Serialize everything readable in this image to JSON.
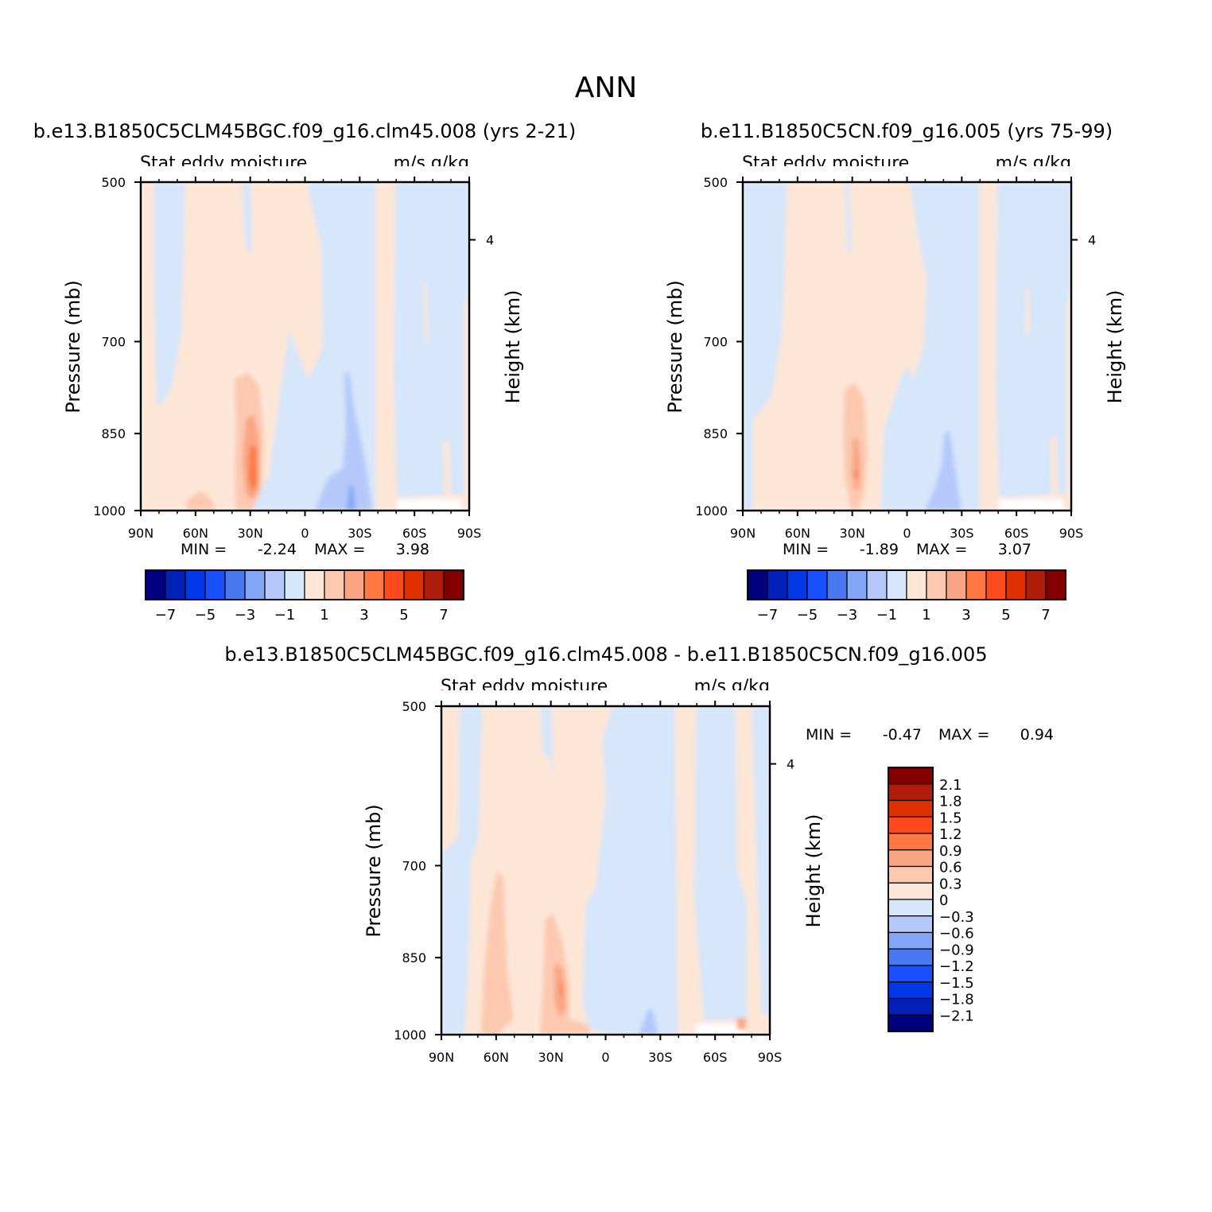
{
  "figure_title": "ANN",
  "chart_data": [
    {
      "type": "heatmap",
      "title": "b.e13.B1850C5CLM45BGC.f09_g16.clm45.008 (yrs 2-21)",
      "variable": "Stat eddy moisture",
      "units": "m/s g/kg",
      "xlabel": "",
      "ylabel": "Pressure (mb)",
      "right_label": "Height (km)",
      "x_ticks": [
        "90N",
        "60N",
        "30N",
        "0",
        "30S",
        "60S",
        "90S"
      ],
      "y_ticks": [
        500,
        700,
        850,
        1000
      ],
      "right_ticks": [
        4
      ],
      "min_label": "MIN =",
      "min": "-2.24",
      "max_label": "MAX =",
      "max": "3.98",
      "colorbar_levels": [
        "-7",
        "-5",
        "-3",
        "-1",
        "1",
        "3",
        "5",
        "7"
      ],
      "colorbar_colors": [
        "#000080",
        "#0020b8",
        "#0038e8",
        "#1850ff",
        "#4a78f0",
        "#82a6f5",
        "#b4c9fa",
        "#d6e6fb",
        "#fde6d6",
        "#fcc9b0",
        "#f9a583",
        "#ff7842",
        "#fd4a1a",
        "#e03000",
        "#b01c0a",
        "#840000"
      ]
    },
    {
      "type": "heatmap",
      "title": "b.e11.B1850C5CN.f09_g16.005 (yrs 75-99)",
      "variable": "Stat eddy moisture",
      "units": "m/s g/kg",
      "xlabel": "",
      "ylabel": "Pressure (mb)",
      "right_label": "Height (km)",
      "x_ticks": [
        "90N",
        "60N",
        "30N",
        "0",
        "30S",
        "60S",
        "90S"
      ],
      "y_ticks": [
        500,
        700,
        850,
        1000
      ],
      "right_ticks": [
        4
      ],
      "min_label": "MIN =",
      "min": "-1.89",
      "max_label": "MAX =",
      "max": "3.07",
      "colorbar_levels": [
        "-7",
        "-5",
        "-3",
        "-1",
        "1",
        "3",
        "5",
        "7"
      ],
      "colorbar_colors": [
        "#000080",
        "#0020b8",
        "#0038e8",
        "#1850ff",
        "#4a78f0",
        "#82a6f5",
        "#b4c9fa",
        "#d6e6fb",
        "#fde6d6",
        "#fcc9b0",
        "#f9a583",
        "#ff7842",
        "#fd4a1a",
        "#e03000",
        "#b01c0a",
        "#840000"
      ]
    },
    {
      "type": "heatmap",
      "title": "b.e13.B1850C5CLM45BGC.f09_g16.clm45.008 - b.e11.B1850C5CN.f09_g16.005",
      "variable": "Stat eddy moisture",
      "units": "m/s g/kg",
      "xlabel": "",
      "ylabel": "Pressure (mb)",
      "right_label": "Height (km)",
      "x_ticks": [
        "90N",
        "60N",
        "30N",
        "0",
        "30S",
        "60S",
        "90S"
      ],
      "y_ticks": [
        500,
        700,
        850,
        1000
      ],
      "right_ticks": [
        4
      ],
      "min_label": "MIN =",
      "min": "-0.47",
      "max_label": "MAX =",
      "max": "0.94",
      "colorbar_levels": [
        "2.1",
        "1.8",
        "1.5",
        "1.2",
        "0.9",
        "0.6",
        "0.3",
        "0",
        "-0.3",
        "-0.6",
        "-0.9",
        "-1.2",
        "-1.5",
        "-1.8",
        "-2.1"
      ],
      "colorbar_colors": [
        "#840000",
        "#b01c0a",
        "#e03000",
        "#fd4a1a",
        "#ff7842",
        "#f9a583",
        "#fcc9b0",
        "#fde6d6",
        "#d6e6fb",
        "#b4c9fa",
        "#82a6f5",
        "#4a78f0",
        "#1850ff",
        "#0038e8",
        "#0020b8",
        "#000080"
      ]
    }
  ]
}
